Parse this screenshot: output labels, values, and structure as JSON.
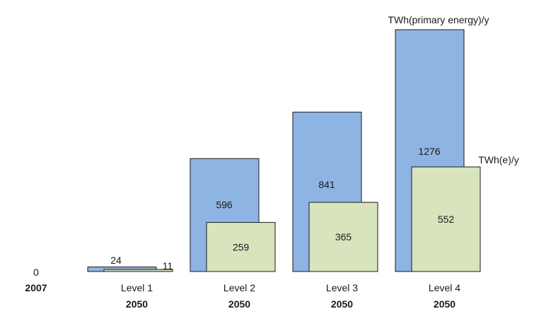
{
  "chart_data": {
    "type": "bar",
    "categories": [
      {
        "label": "",
        "year": "2007"
      },
      {
        "label": "Level 1",
        "year": "2050"
      },
      {
        "label": "Level 2",
        "year": "2050"
      },
      {
        "label": "Level 3",
        "year": "2050"
      },
      {
        "label": "Level 4",
        "year": "2050"
      }
    ],
    "series": [
      {
        "name": "TWh(primary energy)/y",
        "values": [
          0,
          24,
          596,
          841,
          1276
        ],
        "color": "#8eb4e3"
      },
      {
        "name": "TWh(e)/y",
        "values": [
          0,
          11,
          259,
          365,
          552
        ],
        "color": "#d7e4bd"
      }
    ],
    "value_labels": {
      "series0": [
        "0",
        "24",
        "596",
        "841",
        "1276"
      ],
      "series1": [
        "",
        "11",
        "259",
        "365",
        "552"
      ]
    },
    "ylim": [
      0,
      1300
    ],
    "grid": false,
    "legend": "none",
    "bar_stroke": "#1a1a1a"
  }
}
